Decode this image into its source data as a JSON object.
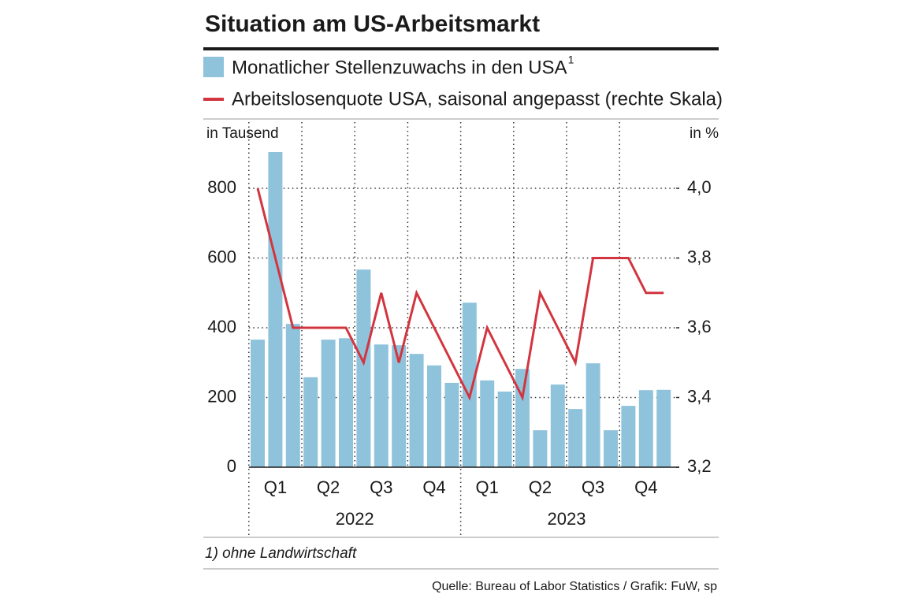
{
  "chart_data": {
    "type": "bar-line",
    "title": "Situation am US-Arbeitsmarkt",
    "y_label": "in Tausend",
    "y2_label": "in %",
    "footnote_marker": "1",
    "footnote": "1) ohne Landwirtschaft",
    "source": "Quelle: Bureau of Labor Statistics / Grafik: FuW, sp",
    "categories": [
      null,
      null,
      null,
      null,
      null,
      null,
      null,
      null,
      null,
      null,
      null,
      null,
      null,
      null,
      null,
      null,
      null,
      null,
      null,
      null,
      null,
      null,
      null,
      null
    ],
    "quarters": [
      "Q1",
      "Q2",
      "Q3",
      "Q4",
      "Q1",
      "Q2",
      "Q3",
      "Q4"
    ],
    "years": [
      "2022",
      "2023"
    ],
    "series": [
      {
        "name": "Monatlicher Stellenzuwachs in den USA",
        "color": "#8fc3dc",
        "kind": "bar",
        "values": [
          366,
          904,
          411,
          258,
          366,
          370,
          567,
          352,
          350,
          325,
          292,
          242,
          472,
          249,
          217,
          282,
          106,
          237,
          167,
          298,
          106,
          176,
          221,
          222
        ]
      },
      {
        "name": "Arbeitslosenquote USA, saisonal angepasst (rechte Skala)",
        "color": "#d2353f",
        "kind": "line",
        "axis": "y2",
        "values": [
          4.0,
          3.8,
          3.6,
          3.6,
          3.6,
          3.6,
          3.5,
          3.7,
          3.5,
          3.7,
          3.6,
          3.5,
          3.4,
          3.6,
          3.5,
          3.4,
          3.7,
          3.6,
          3.5,
          3.8,
          3.8,
          3.8,
          3.7,
          3.7
        ]
      }
    ],
    "ylim": [
      0,
      1000
    ],
    "yticks": [
      0,
      200,
      400,
      600,
      800
    ],
    "y2lim": [
      3.2,
      4.2
    ],
    "y2ticks": [
      {
        "value": 3.2,
        "label": "3,2"
      },
      {
        "value": 3.4,
        "label": "3,4"
      },
      {
        "value": 3.6,
        "label": "3,6"
      },
      {
        "value": 3.8,
        "label": "3,8"
      },
      {
        "value": 4.0,
        "label": "4,0"
      }
    ],
    "grid": true
  }
}
